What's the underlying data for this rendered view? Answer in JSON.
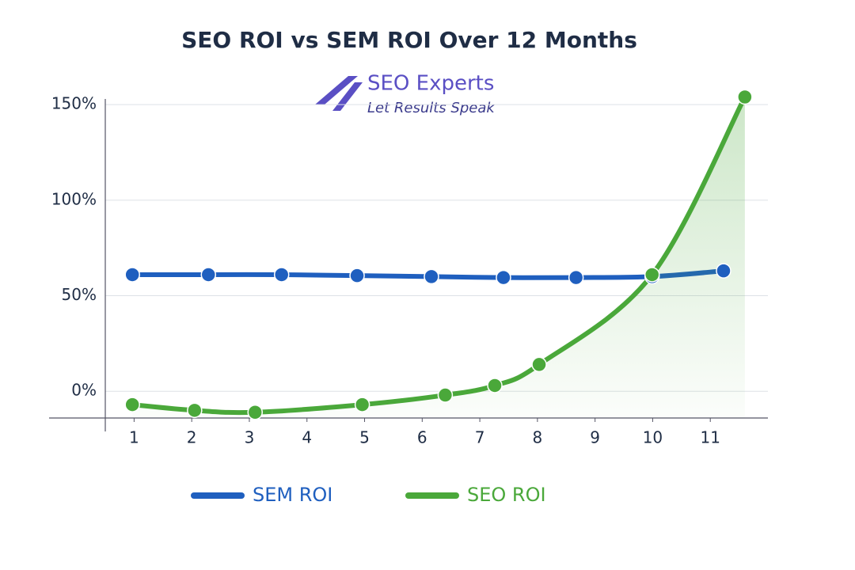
{
  "chart_data": {
    "type": "line",
    "title": "SEO ROI vs SEM ROI Over 12 Months",
    "logo": {
      "name": "SEO Experts",
      "tagline": "Let Results Speak"
    },
    "xlim": [
      0.5,
      12
    ],
    "xticks": [
      1,
      2,
      3,
      4,
      5,
      6,
      7,
      8,
      9,
      10,
      11
    ],
    "ylim": [
      -14,
      160
    ],
    "yticks": [
      {
        "value": 0,
        "label": "0%"
      },
      {
        "value": 50,
        "label": "50%"
      },
      {
        "value": 100,
        "label": "100%"
      },
      {
        "value": 150,
        "label": "150%"
      }
    ],
    "grid": true,
    "legend": "bottom",
    "series": [
      {
        "name": "SEM ROI",
        "color": "#1f5fbf",
        "x": [
          0.97,
          2.29,
          3.56,
          4.87,
          6.16,
          7.41,
          8.67,
          9.99,
          11.23
        ],
        "values": [
          61,
          61,
          61,
          60.5,
          60,
          59.5,
          59.5,
          60,
          63
        ]
      },
      {
        "name": "SEO ROI",
        "color": "#4aa83a",
        "x": [
          0.97,
          2.05,
          3.1,
          4.96,
          6.4,
          7.26,
          8.03,
          9.99,
          11.6
        ],
        "values": [
          -7,
          -10,
          -11,
          -7,
          -2,
          3,
          14,
          61,
          154
        ]
      }
    ]
  }
}
